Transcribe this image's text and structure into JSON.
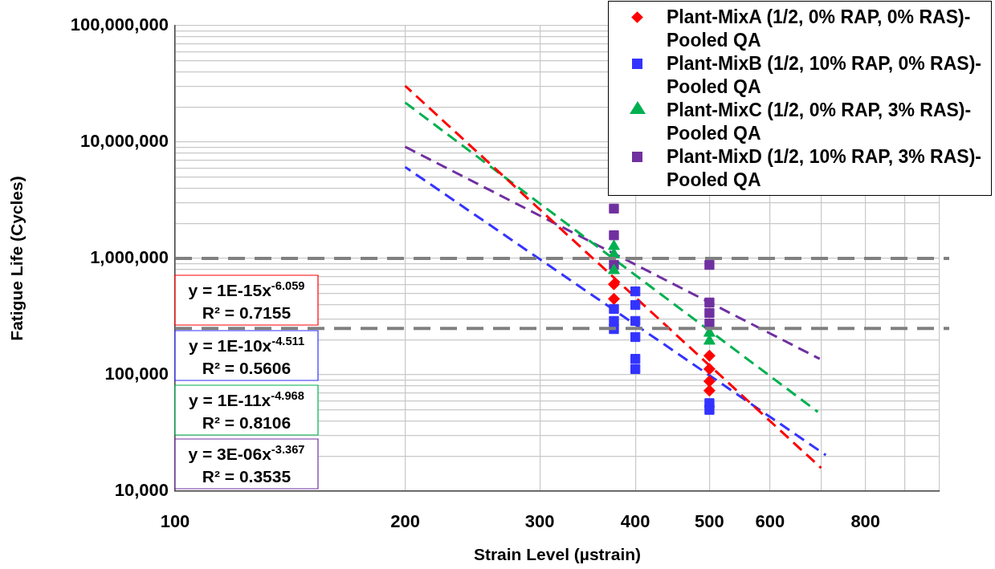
{
  "chart_data": {
    "type": "scatter",
    "xlabel": "Strain Level (µstrain)",
    "ylabel": "Fatigue Life (Cycles)",
    "log": "xy",
    "grid": true,
    "legend": "top right",
    "xlim": [
      100,
      1000
    ],
    "xticks": [
      100,
      200,
      300,
      400,
      500,
      600,
      {
        "value": 700,
        "label": null
      },
      800,
      {
        "value": 900,
        "label": null
      },
      {
        "value": 1000,
        "label": null
      }
    ],
    "ylim": [
      10000,
      100000000
    ],
    "yticks": [
      {
        "value": 10000,
        "label": "10,000"
      },
      {
        "value": 20000,
        "label": null
      },
      {
        "value": 30000,
        "label": null
      },
      {
        "value": 40000,
        "label": null
      },
      {
        "value": 50000,
        "label": null
      },
      {
        "value": 60000,
        "label": null
      },
      {
        "value": 70000,
        "label": null
      },
      {
        "value": 80000,
        "label": null
      },
      {
        "value": 90000,
        "label": null
      },
      {
        "value": 100000,
        "label": "100,000"
      },
      {
        "value": 200000,
        "label": null
      },
      {
        "value": 300000,
        "label": null
      },
      {
        "value": 400000,
        "label": null
      },
      {
        "value": 500000,
        "label": null
      },
      {
        "value": 600000,
        "label": null
      },
      {
        "value": 700000,
        "label": null
      },
      {
        "value": 800000,
        "label": null
      },
      {
        "value": 900000,
        "label": null
      },
      {
        "value": 1000000,
        "label": "1,000,000"
      },
      {
        "value": 2000000,
        "label": null
      },
      {
        "value": 3000000,
        "label": null
      },
      {
        "value": 4000000,
        "label": null
      },
      {
        "value": 5000000,
        "label": null
      },
      {
        "value": 6000000,
        "label": null
      },
      {
        "value": 7000000,
        "label": null
      },
      {
        "value": 8000000,
        "label": null
      },
      {
        "value": 9000000,
        "label": null
      },
      {
        "value": 10000000,
        "label": "10,000,000"
      },
      {
        "value": 20000000,
        "label": null
      },
      {
        "value": 30000000,
        "label": null
      },
      {
        "value": 40000000,
        "label": null
      },
      {
        "value": 50000000,
        "label": null
      },
      {
        "value": 60000000,
        "label": null
      },
      {
        "value": 70000000,
        "label": null
      },
      {
        "value": 80000000,
        "label": null
      },
      {
        "value": 90000000,
        "label": null
      },
      {
        "value": 100000000,
        "label": "100,000,000"
      }
    ],
    "series": [
      {
        "name": "Plant-MixA (1/2, 0% RAP, 0% RAS)-Pooled QA",
        "color": "#ff0000",
        "marker": "diamond",
        "x": [
          375,
          375,
          500,
          500,
          500,
          500
        ],
        "values": [
          600000,
          450000,
          146000,
          112000,
          88000,
          73000
        ]
      },
      {
        "name": "Plant-MixB (1/2, 10% RAP, 0% RAS)-Pooled QA",
        "color": "#3333ff",
        "marker": "square",
        "x": [
          375,
          375,
          375,
          400,
          400,
          400,
          400,
          400,
          400,
          500,
          500
        ],
        "values": [
          368000,
          290000,
          247000,
          521000,
          398000,
          290000,
          211000,
          137000,
          112000,
          57000,
          50000
        ]
      },
      {
        "name": "Plant-MixC (1/2, 0% RAP, 3% RAS)-Pooled QA",
        "color": "#00b050",
        "marker": "triangle",
        "x": [
          375,
          375,
          375,
          500,
          500
        ],
        "values": [
          1270000,
          1080000,
          788000,
          228000,
          195000
        ]
      },
      {
        "name": "Plant-MixD (1/2, 10% RAP, 3% RAS)-Pooled QA",
        "color": "#7030a0",
        "marker": "square",
        "x": [
          375,
          375,
          375,
          500,
          500,
          500,
          500
        ],
        "values": [
          2680000,
          1580000,
          881000,
          880000,
          418000,
          340000,
          276000
        ]
      },
      {
        "type": "line",
        "color": "#ff0000",
        "marker": "none",
        "line_style": "dashed",
        "x": [
          200,
          700
        ],
        "values": [
          30400000,
          15800
        ]
      },
      {
        "type": "line",
        "color": "#3333ff",
        "marker": "none",
        "line_style": "dashed",
        "x": [
          200,
          710
        ],
        "values": [
          6100000,
          20400
        ]
      },
      {
        "type": "line",
        "color": "#00b050",
        "marker": "none",
        "line_style": "dashed",
        "x": [
          200,
          693
        ],
        "values": [
          21800000,
          48000
        ]
      },
      {
        "type": "line",
        "color": "#7030a0",
        "marker": "none",
        "line_style": "dashed",
        "x": [
          200,
          697
        ],
        "values": [
          9100000,
          137000
        ]
      }
    ],
    "ref_lines": [
      {
        "axis": "y",
        "value": 1000000,
        "color": "#808080",
        "line_style": "dashed"
      },
      {
        "axis": "y",
        "value": 250000,
        "color": "#808080",
        "line_style": "dashed"
      }
    ],
    "annotations": [
      "y = 1E-15x$^{-6.059}$\nR² = 0.7155",
      "y = 1E-10x$^{-4.511}$\nR² = 0.5606",
      "y = 1E-11x$^{-4.968}$\nR² = 0.8106",
      "y = 3E-06x$^{-3.367}$\nR² = 0.3535"
    ]
  }
}
